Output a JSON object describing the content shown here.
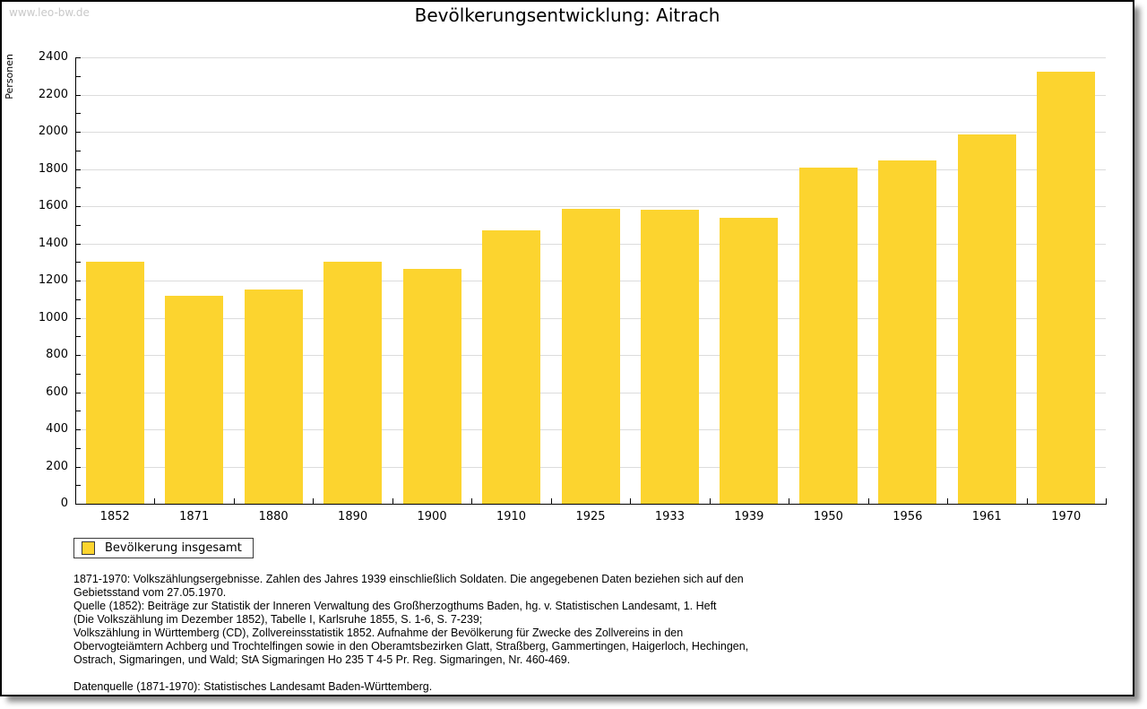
{
  "page": {
    "watermark": "www.leo-bw.de",
    "title": "Bevölkerungsentwicklung: Aitrach"
  },
  "chart_data": {
    "type": "bar",
    "title": "Bevölkerungsentwicklung: Aitrach",
    "xlabel": "",
    "ylabel": "Personen",
    "categories": [
      "1852",
      "1871",
      "1880",
      "1890",
      "1900",
      "1910",
      "1925",
      "1933",
      "1939",
      "1950",
      "1956",
      "1961",
      "1970"
    ],
    "values": [
      1300,
      1120,
      1152,
      1300,
      1263,
      1470,
      1586,
      1580,
      1535,
      1806,
      1845,
      1984,
      2322
    ],
    "ylim": [
      0,
      2400
    ],
    "ytick_step": 200,
    "yminor_tick_step": 100,
    "grid": "horizontal-major",
    "legend": [
      {
        "label": "Bevölkerung insgesamt",
        "color": "#fcd42f"
      }
    ],
    "legend_position": "bottom-left",
    "bar_color": "#fcd42f",
    "gridline_color": "#dcdcdc",
    "axis_color": "#000000"
  },
  "footnotes": {
    "lines": [
      "1871-1970: Volkszählungsergebnisse. Zahlen des Jahres 1939 einschließlich Soldaten. Die angegebenen Daten beziehen sich auf den",
      "Gebietsstand vom 27.05.1970.",
      "Quelle (1852): Beiträge zur Statistik der Inneren Verwaltung des Großherzogthums Baden, hg. v. Statistischen Landesamt, 1. Heft",
      "(Die Volkszählung im Dezember 1852), Tabelle I, Karlsruhe 1855, S. 1-6, S. 7-239;",
      "Volkszählung in Württemberg (CD), Zollvereinsstatistik 1852. Aufnahme der Bevölkerung für Zwecke des Zollvereins in den",
      "Obervogteiämtern Achberg und Trochtelfingen sowie in den Oberamtsbezirken Glatt, Straßberg, Gammertingen, Haigerloch, Hechingen,",
      "Ostrach, Sigmaringen, und Wald; StA Sigmaringen Ho 235 T 4-5 Pr. Reg. Sigmaringen, Nr. 460-469."
    ],
    "datasource": "Datenquelle (1871-1970): Statistisches Landesamt Baden-Württemberg."
  }
}
